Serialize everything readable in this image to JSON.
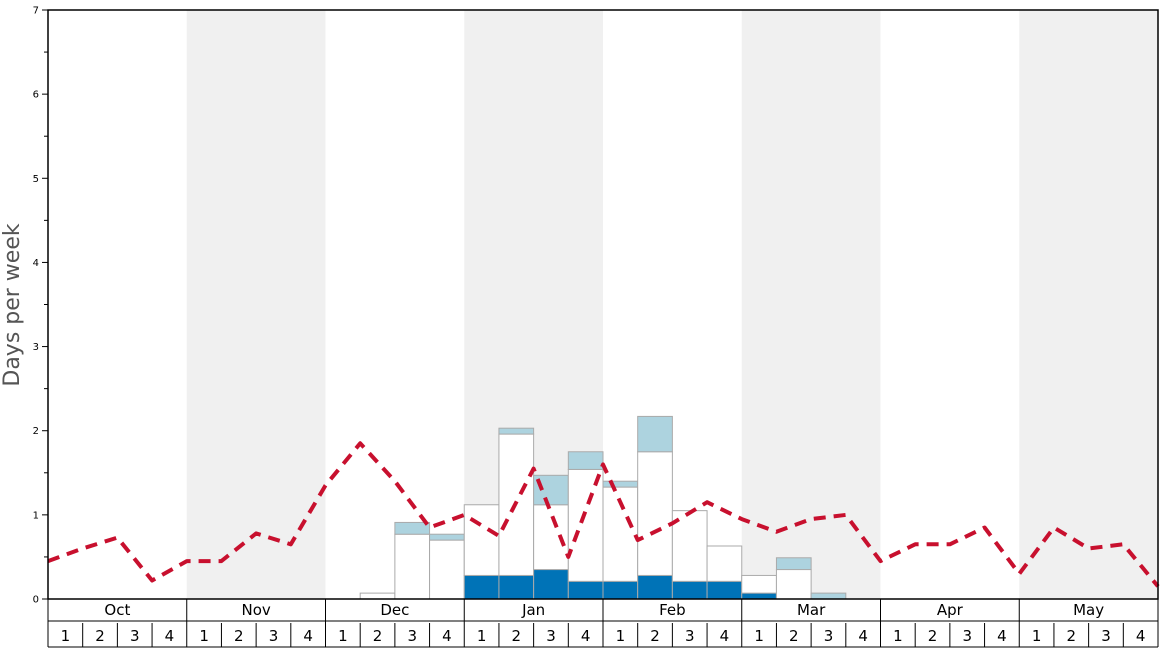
{
  "chart_data": {
    "type": "bar",
    "ylabel": "Days per week",
    "ylim": [
      0,
      7
    ],
    "yticks": [
      0,
      1,
      2,
      3,
      4,
      5,
      6,
      7
    ],
    "months": [
      "Oct",
      "Nov",
      "Dec",
      "Jan",
      "Feb",
      "Mar",
      "Apr",
      "May"
    ],
    "weeks": [
      "1",
      "2",
      "3",
      "4"
    ],
    "shaded_months": [
      "Nov",
      "Jan",
      "Mar",
      "May"
    ],
    "colors": {
      "dark_segment": "#0073b7",
      "white_segment": "#ffffff",
      "light_segment": "#add3df",
      "bar_outline": "#aaaaaa",
      "dashed_line": "#c8102e",
      "shading": "#f0f0f0"
    },
    "stacked_series": [
      {
        "key": "dark",
        "values": [
          0,
          0,
          0,
          0,
          0,
          0,
          0,
          0,
          0,
          0,
          0,
          0,
          0.28,
          0.28,
          0.35,
          0.21,
          0.21,
          0.28,
          0.21,
          0.21,
          0.07,
          0,
          0,
          0,
          0,
          0,
          0,
          0,
          0,
          0,
          0,
          0
        ]
      },
      {
        "key": "white",
        "values": [
          0,
          0,
          0,
          0,
          0,
          0,
          0,
          0,
          0,
          0.07,
          0.77,
          0.7,
          0.84,
          1.68,
          0.77,
          1.33,
          1.12,
          1.47,
          0.84,
          0.42,
          0.21,
          0.35,
          0,
          0,
          0,
          0,
          0,
          0,
          0,
          0,
          0,
          0
        ]
      },
      {
        "key": "light",
        "values": [
          0,
          0,
          0,
          0,
          0,
          0,
          0,
          0,
          0,
          0,
          0.14,
          0.07,
          0,
          0.07,
          0.35,
          0.21,
          0.07,
          0.42,
          0,
          0,
          0,
          0.14,
          0.07,
          0,
          0,
          0,
          0,
          0,
          0,
          0,
          0,
          0
        ]
      }
    ],
    "line_series": {
      "style": "dashed",
      "values": [
        0.45,
        0.6,
        0.73,
        0.22,
        0.45,
        0.45,
        0.78,
        0.65,
        1.35,
        1.85,
        1.4,
        0.85,
        1.0,
        0.75,
        1.55,
        0.5,
        1.6,
        0.7,
        0.9,
        1.15,
        0.95,
        0.8,
        0.95,
        1.0,
        0.45,
        0.65,
        0.65,
        0.85,
        0.3,
        0.85,
        0.6,
        0.65,
        0.15
      ]
    }
  }
}
